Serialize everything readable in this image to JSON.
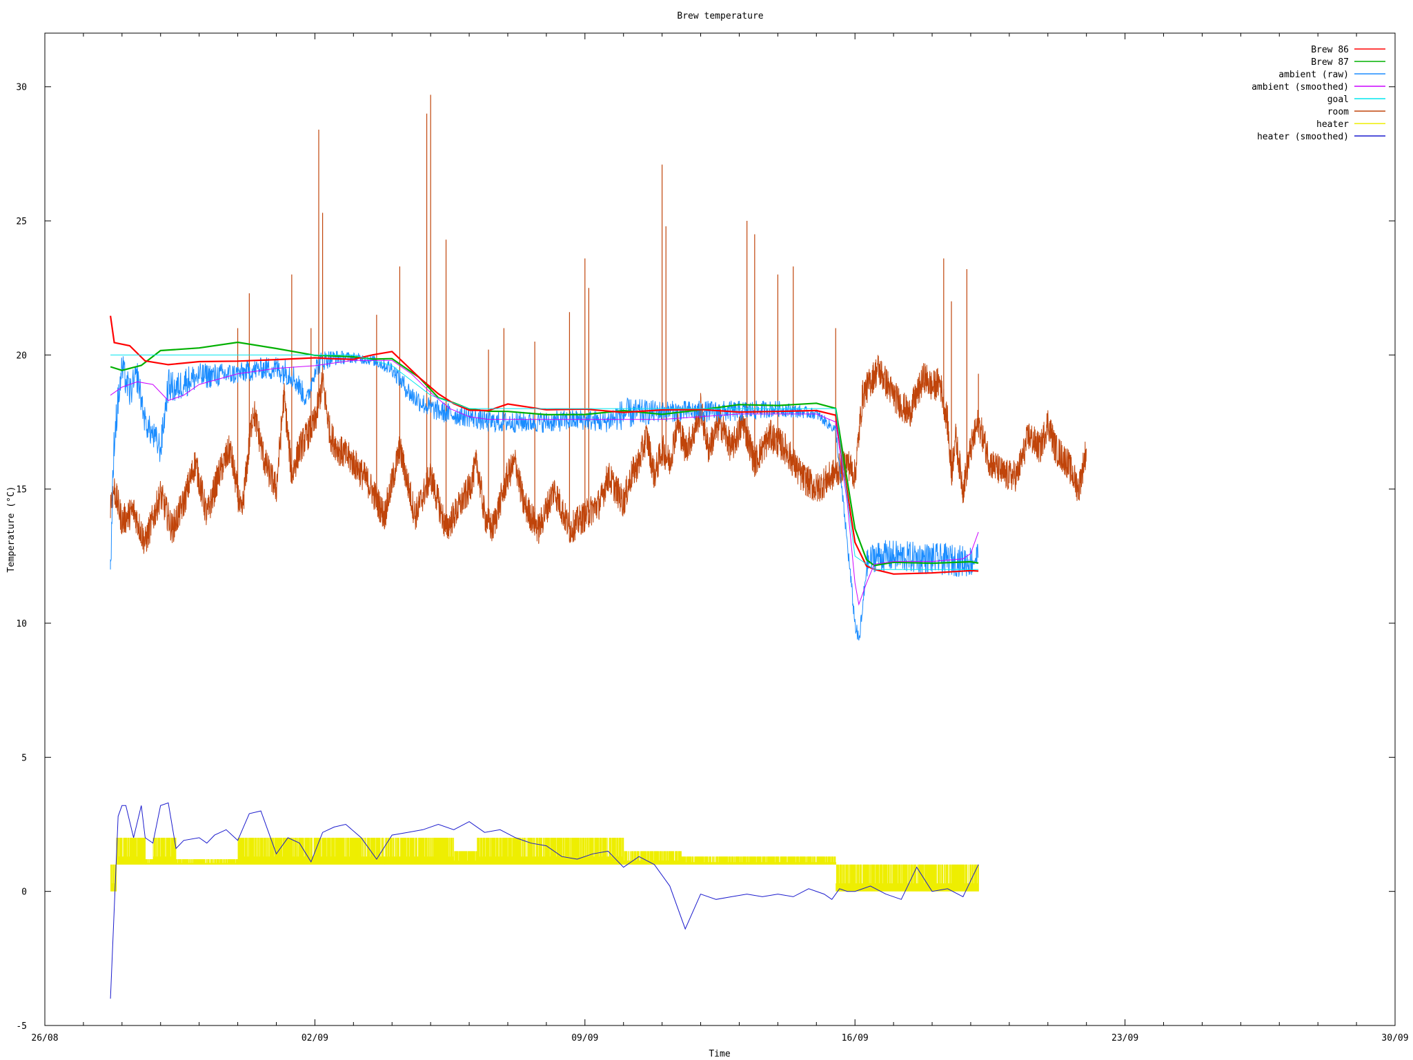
{
  "chart_data": {
    "type": "line",
    "title": "Brew temperature",
    "xlabel": "Time",
    "ylabel": "Temperature (°C)",
    "xlim": [
      "26/08",
      "30/09"
    ],
    "ylim": [
      -5,
      32
    ],
    "x_ticks": [
      "26/08",
      "02/09",
      "09/09",
      "16/09",
      "23/09",
      "30/09"
    ],
    "y_ticks": [
      "-5",
      "0",
      "5",
      "10",
      "15",
      "20",
      "25",
      "30"
    ],
    "grid": false,
    "legend_position": "top-right",
    "x_unit": "days since 26/08",
    "series": [
      {
        "name": "room",
        "color": "#c0440a",
        "style": "line",
        "x": [
          1.7,
          1.8,
          2.0,
          2.3,
          2.6,
          3.0,
          3.3,
          3.6,
          3.9,
          4.2,
          4.5,
          4.8,
          5.1,
          5.4,
          5.7,
          6.0,
          6.2,
          6.4,
          6.6,
          7.0,
          7.2,
          7.4,
          7.6,
          8.0,
          8.4,
          8.8,
          9.2,
          9.6,
          10.0,
          10.4,
          10.8,
          11.0,
          11.2,
          11.4,
          11.6,
          11.8,
          12.0,
          12.2,
          12.4,
          12.8,
          13.2,
          13.6,
          14.0,
          14.4,
          14.6,
          14.8,
          15.0,
          15.2,
          15.4,
          15.6,
          15.8,
          16.0,
          16.2,
          16.4,
          16.6,
          16.8,
          17.0,
          17.2,
          17.5,
          17.8,
          18.1,
          18.4,
          18.8,
          19.2,
          19.6,
          20.0,
          20.4,
          20.8,
          21.0,
          21.2,
          21.6,
          22.0,
          22.4,
          22.8,
          23.0,
          23.2,
          23.4,
          23.5,
          23.6,
          23.7,
          23.8,
          24.0,
          24.2,
          24.5,
          24.9,
          25.2,
          25.5,
          25.8,
          26.0,
          26.2,
          26.5,
          26.8,
          27.0
        ],
        "y": [
          14.5,
          15.0,
          13.8,
          14.2,
          13.0,
          14.8,
          13.5,
          14.5,
          16.0,
          14.0,
          15.5,
          16.5,
          14.0,
          18.0,
          16.0,
          15.0,
          18.5,
          15.5,
          16.5,
          17.5,
          19.0,
          17.0,
          16.5,
          16.0,
          15.2,
          14.0,
          16.5,
          14.0,
          15.5,
          13.5,
          14.5,
          15.0,
          16.0,
          14.0,
          13.5,
          14.5,
          15.5,
          16.0,
          14.5,
          13.5,
          15.0,
          13.5,
          14.0,
          14.5,
          15.5,
          15.0,
          14.5,
          15.5,
          16.0,
          17.0,
          15.5,
          16.5,
          16.0,
          17.5,
          16.5,
          17.0,
          18.0,
          16.5,
          17.5,
          16.5,
          17.5,
          16.0,
          17.0,
          16.5,
          15.5,
          15.0,
          15.5,
          16.0,
          15.5,
          18.5,
          19.5,
          18.5,
          17.8,
          19.2,
          18.8,
          19.0,
          17.5,
          15.5,
          17.0,
          16.0,
          15.0,
          16.5,
          17.5,
          16.0,
          15.5,
          15.5,
          17.0,
          16.5,
          17.5,
          16.5,
          16.0,
          15.0,
          16.5
        ],
        "spikes": [
          [
            5.0,
            21.0
          ],
          [
            5.3,
            22.3
          ],
          [
            6.4,
            23.0
          ],
          [
            6.9,
            21.0
          ],
          [
            7.1,
            28.4
          ],
          [
            7.2,
            25.3
          ],
          [
            8.6,
            21.5
          ],
          [
            9.2,
            23.3
          ],
          [
            9.9,
            29.0
          ],
          [
            10.0,
            29.7
          ],
          [
            10.4,
            24.3
          ],
          [
            11.5,
            20.2
          ],
          [
            11.9,
            21.0
          ],
          [
            12.7,
            20.5
          ],
          [
            13.6,
            21.6
          ],
          [
            14.0,
            23.6
          ],
          [
            14.1,
            22.5
          ],
          [
            16.0,
            27.1
          ],
          [
            16.1,
            24.8
          ],
          [
            18.2,
            25.0
          ],
          [
            18.4,
            24.5
          ],
          [
            19.0,
            23.0
          ],
          [
            19.4,
            23.3
          ],
          [
            20.5,
            21.0
          ],
          [
            23.3,
            23.6
          ],
          [
            23.5,
            22.0
          ],
          [
            23.9,
            23.2
          ],
          [
            24.2,
            19.3
          ]
        ]
      },
      {
        "name": "Brew 86",
        "color": "#ff0000",
        "style": "line",
        "x": [
          1.7,
          1.8,
          2.2,
          2.6,
          3.2,
          4.0,
          5.0,
          6.0,
          7.0,
          7.5,
          8.0,
          8.5,
          9.0,
          9.7,
          10.2,
          10.6,
          11.0,
          11.5,
          12.0,
          13.0,
          14.0,
          15.0,
          16.0,
          17.0,
          18.0,
          19.0,
          20.0,
          20.5,
          21.0,
          21.3,
          21.5,
          22.0,
          23.0,
          24.0,
          24.2
        ],
        "y": [
          21.5,
          20.5,
          20.3,
          19.8,
          19.7,
          19.7,
          19.7,
          19.8,
          19.9,
          19.9,
          19.9,
          20.0,
          20.2,
          19.2,
          18.5,
          18.2,
          18.0,
          18.0,
          18.1,
          18.0,
          18.0,
          17.9,
          17.9,
          17.9,
          17.9,
          17.9,
          17.9,
          17.8,
          13.0,
          12.2,
          12.0,
          11.9,
          11.9,
          11.9,
          11.9
        ]
      },
      {
        "name": "Brew 87",
        "color": "#00b000",
        "style": "line",
        "x": [
          1.7,
          2.0,
          2.5,
          3.0,
          4.0,
          5.0,
          6.0,
          7.0,
          7.5,
          8.0,
          8.5,
          9.0,
          9.7,
          10.2,
          10.6,
          11.0,
          11.5,
          12.0,
          13.0,
          14.0,
          15.0,
          16.0,
          17.0,
          18.0,
          19.0,
          20.0,
          20.5,
          21.0,
          21.3,
          21.5,
          22.0,
          23.0,
          24.0,
          24.2
        ],
        "y": [
          19.6,
          19.5,
          19.6,
          20.1,
          20.3,
          20.4,
          20.2,
          20.0,
          20.0,
          20.0,
          19.9,
          19.8,
          19.1,
          18.4,
          18.2,
          18.0,
          17.9,
          17.9,
          17.8,
          17.8,
          17.9,
          17.8,
          17.9,
          18.1,
          18.1,
          18.2,
          18.0,
          13.5,
          12.3,
          12.1,
          12.2,
          12.3,
          12.3,
          12.3
        ]
      },
      {
        "name": "ambient (raw)",
        "color": "#1a8cff",
        "style": "noisy",
        "x": [
          1.7,
          1.8,
          2.0,
          2.2,
          2.4,
          2.6,
          3.0,
          3.2,
          3.4,
          3.6,
          4.0,
          5.0,
          5.6,
          6.0,
          6.4,
          6.8,
          7.0,
          7.2,
          7.5,
          8.0,
          8.5,
          9.0,
          9.5,
          10.0,
          10.5,
          11.0,
          11.5,
          12.0,
          13.0,
          14.0,
          14.5,
          15.0,
          16.0,
          17.0,
          18.0,
          19.0,
          20.0,
          20.5,
          20.8,
          21.0,
          21.1,
          21.2,
          21.3,
          21.5,
          22.0,
          23.0,
          24.0,
          24.2
        ],
        "y": [
          12.0,
          17.0,
          19.5,
          18.6,
          19.2,
          17.5,
          16.5,
          18.9,
          18.7,
          19.0,
          19.2,
          19.3,
          19.5,
          19.5,
          19.3,
          18.3,
          19.5,
          19.8,
          19.9,
          19.9,
          19.8,
          19.5,
          18.5,
          18.0,
          17.8,
          17.7,
          17.5,
          17.5,
          17.5,
          17.6,
          17.5,
          17.8,
          17.9,
          17.9,
          17.9,
          18.0,
          17.8,
          17.2,
          13.0,
          10.0,
          9.3,
          10.5,
          12.2,
          12.5,
          12.5,
          12.4,
          12.3,
          12.5
        ],
        "noise": [
          0.8,
          0.8,
          0.6,
          0.6,
          0.6,
          0.5,
          0.6,
          0.6,
          0.6,
          0.6,
          0.5,
          0.4,
          0.4,
          0.5,
          0.5,
          0.4,
          0.4,
          0.4,
          0.3,
          0.2,
          0.2,
          0.3,
          0.4,
          0.4,
          0.4,
          0.4,
          0.4,
          0.4,
          0.4,
          0.4,
          0.4,
          0.6,
          0.4,
          0.4,
          0.4,
          0.3,
          0.2,
          0.2,
          0.3,
          0.3,
          0.3,
          0.4,
          0.5,
          0.6,
          0.6,
          0.6,
          0.6,
          0.6
        ]
      },
      {
        "name": "ambient (smoothed)",
        "color": "#cc00ff",
        "style": "line",
        "x": [
          1.7,
          2.0,
          2.4,
          2.8,
          3.2,
          3.6,
          4.0,
          5.0,
          6.0,
          7.0,
          8.0,
          9.0,
          9.5,
          10.0,
          10.5,
          11.0,
          11.5,
          12.0,
          13.0,
          14.0,
          15.0,
          16.0,
          17.0,
          18.0,
          19.0,
          20.0,
          20.5,
          20.8,
          21.0,
          21.1,
          21.3,
          21.5,
          22.0,
          23.0,
          23.8,
          24.0,
          24.2
        ],
        "y": [
          18.5,
          18.8,
          19.0,
          18.9,
          18.3,
          18.5,
          18.9,
          19.3,
          19.5,
          19.6,
          19.8,
          19.8,
          19.3,
          18.6,
          18.0,
          17.7,
          17.6,
          17.6,
          17.6,
          17.6,
          17.6,
          17.6,
          17.7,
          17.8,
          17.8,
          17.8,
          17.5,
          14.5,
          11.5,
          10.7,
          11.5,
          12.2,
          12.3,
          12.3,
          12.4,
          12.6,
          13.4
        ]
      },
      {
        "name": "goal",
        "color": "#00e5ee",
        "style": "line",
        "x": [
          1.7,
          8.0,
          9.0,
          10.0,
          11.0,
          12.0,
          16.0,
          20.0,
          20.5,
          21.0,
          21.3,
          21.5,
          24.2
        ],
        "y": [
          20.0,
          20.0,
          19.6,
          18.5,
          18.0,
          18.0,
          18.0,
          18.0,
          18.0,
          12.5,
          12.2,
          12.0,
          12.0
        ]
      },
      {
        "name": "heater",
        "color": "#eeee00",
        "style": "bars",
        "segments": [
          [
            1.7,
            1.85,
            0,
            1
          ],
          [
            1.85,
            2.6,
            1,
            2
          ],
          [
            2.6,
            2.8,
            1,
            1.2
          ],
          [
            2.8,
            3.4,
            1,
            2
          ],
          [
            3.4,
            5.0,
            1,
            1.2
          ],
          [
            5.0,
            8.8,
            1,
            2
          ],
          [
            8.8,
            10.6,
            1,
            2
          ],
          [
            10.6,
            11.2,
            1,
            1.5
          ],
          [
            11.2,
            14.2,
            1,
            2
          ],
          [
            14.2,
            15.0,
            1,
            2
          ],
          [
            15.0,
            16.5,
            1,
            1.5
          ],
          [
            16.5,
            20.5,
            1,
            1.3
          ],
          [
            20.5,
            24.2,
            0,
            1
          ]
        ]
      },
      {
        "name": "heater (smoothed)",
        "color": "#1a1acd",
        "style": "line",
        "x": [
          1.7,
          1.9,
          2.0,
          2.1,
          2.3,
          2.5,
          2.6,
          2.8,
          3.0,
          3.2,
          3.4,
          3.6,
          4.0,
          4.2,
          4.4,
          4.7,
          5.0,
          5.3,
          5.6,
          6.0,
          6.3,
          6.6,
          6.9,
          7.2,
          7.5,
          7.8,
          8.2,
          8.6,
          9.0,
          9.4,
          9.8,
          10.2,
          10.6,
          11.0,
          11.4,
          11.8,
          12.2,
          12.6,
          13.0,
          13.4,
          13.8,
          14.2,
          14.6,
          15.0,
          15.4,
          15.8,
          16.2,
          16.6,
          17.0,
          17.4,
          17.8,
          18.2,
          18.6,
          19.0,
          19.4,
          19.8,
          20.2,
          20.4,
          20.6,
          20.8,
          21.0,
          21.4,
          21.8,
          22.2,
          22.6,
          23.0,
          23.4,
          23.8,
          24.2
        ],
        "y": [
          -4.0,
          2.8,
          3.2,
          3.2,
          2.0,
          3.2,
          2.0,
          1.8,
          3.2,
          3.3,
          1.6,
          1.9,
          2.0,
          1.8,
          2.1,
          2.3,
          1.9,
          2.9,
          3.0,
          1.4,
          2.0,
          1.8,
          1.1,
          2.2,
          2.4,
          2.5,
          2.0,
          1.2,
          2.1,
          2.2,
          2.3,
          2.5,
          2.3,
          2.6,
          2.2,
          2.3,
          2.0,
          1.8,
          1.7,
          1.3,
          1.2,
          1.4,
          1.5,
          0.9,
          1.3,
          1.0,
          0.2,
          -1.4,
          -0.1,
          -0.3,
          -0.2,
          -0.1,
          -0.2,
          -0.1,
          -0.2,
          0.1,
          -0.1,
          -0.3,
          0.1,
          0.0,
          0.0,
          0.2,
          -0.1,
          -0.3,
          0.9,
          0.0,
          0.1,
          -0.2,
          1.0
        ]
      }
    ]
  }
}
